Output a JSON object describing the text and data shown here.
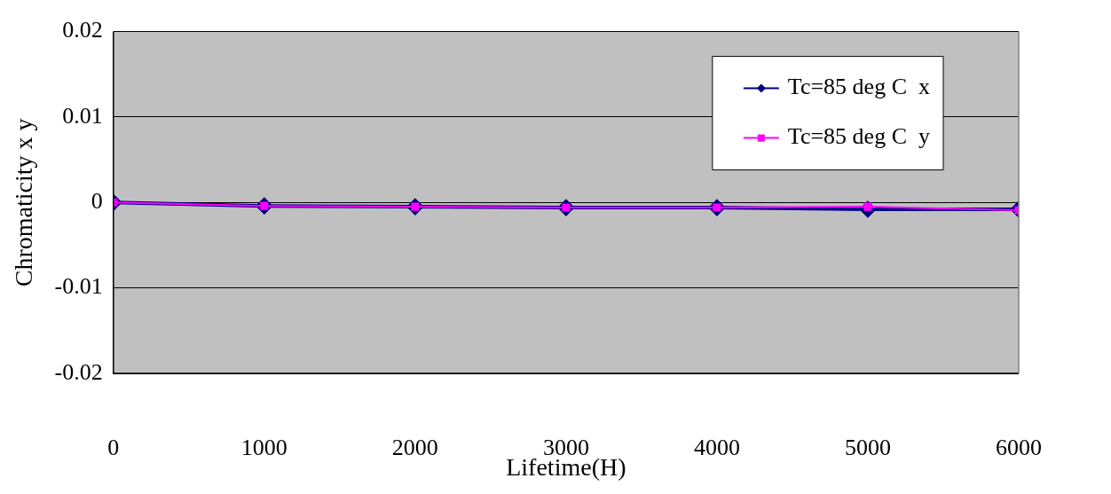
{
  "chart_data": {
    "type": "line",
    "xlabel": "Lifetime(H)",
    "ylabel": "Chromaticity x y",
    "x": [
      0,
      1000,
      2000,
      3000,
      4000,
      5000,
      6000
    ],
    "series": [
      {
        "name": "Tc=85 deg C  x",
        "color": "#000080",
        "marker": "diamond",
        "values": [
          0,
          -0.0004,
          -0.0005,
          -0.0006,
          -0.0006,
          -0.0008,
          -0.0008
        ]
      },
      {
        "name": "Tc=85 deg C  y",
        "color": "#ff00ff",
        "marker": "square",
        "values": [
          0,
          -0.0004,
          -0.0005,
          -0.0006,
          -0.0006,
          -0.0005,
          -0.0009
        ]
      }
    ],
    "xlim": [
      0,
      6000
    ],
    "xticks": [
      0,
      1000,
      2000,
      3000,
      4000,
      5000,
      6000
    ],
    "ylim": [
      -0.02,
      0.02
    ],
    "yticks": [
      -0.02,
      -0.01,
      0,
      0.01,
      0.02
    ],
    "grid": "y",
    "legend": "top right",
    "line_style": "solid"
  }
}
